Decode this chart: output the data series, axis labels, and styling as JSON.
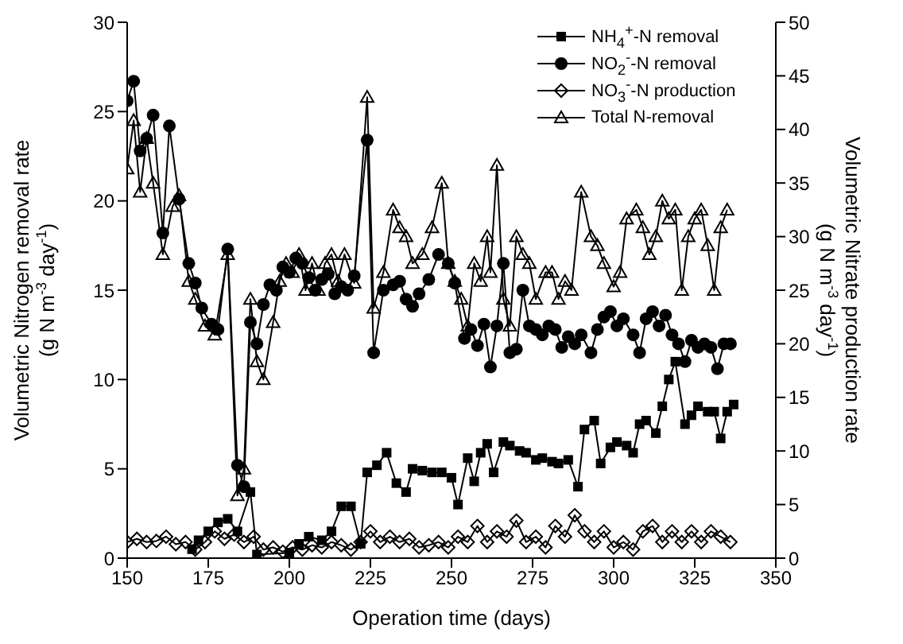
{
  "chart_data": {
    "type": "line",
    "xlabel": "Operation time (days)",
    "ylabel": "Volumetric Nitrogen removal rate\n(g N m$^{-3}$ day$^{-1}$)",
    "y2label": "Volumetric Nitrate production rate\n(g N m$^{-3}$ day$^{-1}$)",
    "xlim": [
      150,
      350
    ],
    "xticks": [
      150,
      175,
      200,
      225,
      250,
      275,
      300,
      325,
      350
    ],
    "ylim": [
      0,
      30
    ],
    "yticks": [
      0,
      5,
      10,
      15,
      20,
      25,
      30
    ],
    "y2lim": [
      0,
      50
    ],
    "y2ticks": [
      0,
      5,
      10,
      15,
      20,
      25,
      30,
      35,
      40,
      45,
      50
    ],
    "legend": "top right",
    "grid": false,
    "series": [
      {
        "name": "NH$_{4}$$^{+}$-N removal",
        "color": "#000000",
        "marker": "square",
        "x": [
          170,
          172,
          175,
          178,
          181,
          184,
          188,
          190,
          200,
          203,
          206,
          210,
          213,
          216,
          219,
          222,
          224,
          227,
          230,
          233,
          236,
          238,
          241,
          244,
          247,
          250,
          252,
          255,
          257,
          259,
          261,
          263,
          266,
          268,
          271,
          273,
          276,
          278,
          281,
          283,
          286,
          289,
          291,
          294,
          296,
          299,
          301,
          304,
          306,
          308,
          310,
          313,
          315,
          317,
          319,
          322,
          324,
          326,
          329,
          331,
          333,
          335,
          337
        ],
        "values": [
          0.5,
          1.0,
          1.5,
          2.0,
          2.2,
          1.5,
          3.7,
          0.2,
          0.3,
          0.8,
          1.2,
          1.0,
          1.5,
          2.9,
          2.9,
          0.8,
          4.8,
          5.2,
          5.9,
          4.2,
          3.7,
          5.0,
          4.9,
          4.8,
          4.8,
          4.5,
          3.0,
          5.6,
          4.3,
          5.9,
          6.4,
          4.8,
          6.5,
          6.3,
          6.0,
          5.9,
          5.5,
          5.6,
          5.4,
          5.3,
          5.5,
          4.0,
          7.2,
          7.7,
          5.3,
          6.2,
          6.5,
          6.3,
          5.9,
          7.5,
          7.7,
          7.0,
          8.5,
          10.0,
          11.0,
          7.5,
          8.0,
          8.5,
          8.2,
          8.2,
          6.7,
          8.2,
          8.6
        ]
      },
      {
        "name": "NO$_{2}$$^{-}$-N removal",
        "color": "#000000",
        "marker": "circle",
        "x": [
          150,
          152,
          154,
          156,
          158,
          161,
          163,
          166,
          169,
          171,
          173,
          176,
          178,
          181,
          184,
          186,
          188,
          190,
          192,
          194,
          196,
          198,
          200,
          202,
          204,
          206,
          208,
          210,
          212,
          214,
          216,
          218,
          220,
          224,
          226,
          229,
          232,
          234,
          236,
          238,
          240,
          243,
          246,
          249,
          251,
          254,
          256,
          258,
          260,
          262,
          264,
          266,
          268,
          270,
          272,
          274,
          276,
          278,
          280,
          282,
          284,
          286,
          288,
          290,
          293,
          295,
          297,
          299,
          301,
          303,
          306,
          308,
          310,
          312,
          314,
          316,
          318,
          320,
          322,
          324,
          326,
          328,
          330,
          332,
          334,
          336
        ],
        "values": [
          25.6,
          26.7,
          22.8,
          23.5,
          24.8,
          18.2,
          24.2,
          20.1,
          16.5,
          15.4,
          14.0,
          13.1,
          12.8,
          17.3,
          5.2,
          4.0,
          13.2,
          12.0,
          14.2,
          15.3,
          15.0,
          16.3,
          16.0,
          16.8,
          16.5,
          15.7,
          15.0,
          15.6,
          15.9,
          14.8,
          15.2,
          15.0,
          15.8,
          23.4,
          11.5,
          15.0,
          15.3,
          15.5,
          14.5,
          14.1,
          14.8,
          15.6,
          17.0,
          16.5,
          15.4,
          12.3,
          12.8,
          11.9,
          13.1,
          10.7,
          13.0,
          16.5,
          11.5,
          11.7,
          15.0,
          13.0,
          12.8,
          12.5,
          13.0,
          12.8,
          11.8,
          12.4,
          12.0,
          12.5,
          11.5,
          12.8,
          13.5,
          13.8,
          13.0,
          13.4,
          12.5,
          11.5,
          13.4,
          13.8,
          13.0,
          13.6,
          12.5,
          12.0,
          11.0,
          12.2,
          11.8,
          12.0,
          11.8,
          10.6,
          12.0,
          12.0
        ]
      },
      {
        "name": "NO$_{3}$$^{-}$-N production",
        "color": "#000000",
        "marker": "diamond",
        "axis": "y2",
        "x": [
          150,
          153,
          156,
          159,
          162,
          165,
          168,
          171,
          174,
          177,
          180,
          183,
          186,
          189,
          192,
          195,
          198,
          201,
          204,
          207,
          210,
          213,
          216,
          219,
          222,
          225,
          228,
          231,
          234,
          237,
          240,
          243,
          246,
          249,
          252,
          255,
          258,
          261,
          264,
          267,
          270,
          273,
          276,
          279,
          282,
          285,
          288,
          291,
          294,
          297,
          300,
          303,
          306,
          309,
          312,
          315,
          318,
          321,
          324,
          327,
          330,
          333,
          336
        ],
        "values": [
          1.5,
          1.8,
          1.5,
          1.6,
          2.0,
          1.3,
          1.5,
          0.8,
          1.5,
          2.5,
          1.8,
          2.2,
          1.5,
          2.0,
          0.8,
          1.0,
          0.6,
          1.0,
          0.8,
          1.2,
          1.0,
          1.5,
          1.2,
          0.8,
          1.5,
          2.5,
          1.5,
          2.0,
          1.5,
          1.8,
          1.0,
          1.2,
          1.5,
          1.0,
          2.0,
          1.5,
          3.0,
          1.5,
          2.5,
          2.0,
          3.5,
          1.5,
          2.0,
          1.0,
          3.0,
          2.0,
          4.0,
          2.5,
          1.5,
          2.5,
          1.0,
          1.5,
          0.8,
          2.5,
          3.0,
          1.5,
          2.5,
          1.5,
          2.5,
          1.5,
          2.5,
          2.0,
          1.5
        ]
      },
      {
        "name": "Total N-removal",
        "color": "#000000",
        "marker": "triangle",
        "x": [
          150,
          152,
          154,
          156,
          158,
          161,
          164,
          166,
          169,
          171,
          174,
          177,
          181,
          184,
          186,
          188,
          190,
          192,
          195,
          197,
          199,
          201,
          203,
          205,
          207,
          209,
          211,
          213,
          215,
          217,
          220,
          224,
          226,
          229,
          232,
          234,
          236,
          238,
          241,
          244,
          247,
          249,
          251,
          253,
          255,
          257,
          259,
          261,
          262,
          264,
          266,
          268,
          270,
          272,
          274,
          276,
          279,
          281,
          283,
          285,
          287,
          290,
          293,
          295,
          297,
          300,
          302,
          304,
          307,
          309,
          311,
          313,
          315,
          317,
          319,
          321,
          323,
          325,
          327,
          329,
          331,
          333,
          335
        ],
        "values": [
          21.8,
          24.5,
          20.5,
          23.5,
          21.0,
          17.0,
          19.7,
          20.3,
          15.5,
          14.5,
          13.0,
          12.5,
          17.0,
          3.5,
          5.0,
          14.5,
          11.0,
          10.0,
          13.2,
          15.5,
          16.5,
          16.0,
          17.0,
          15.0,
          16.5,
          15.0,
          16.5,
          17.0,
          15.5,
          17.0,
          15.4,
          25.8,
          14.0,
          16.0,
          19.5,
          18.5,
          18.0,
          16.5,
          17.0,
          18.5,
          21.0,
          16.5,
          15.5,
          14.5,
          13.0,
          16.5,
          15.5,
          18.0,
          16.0,
          22.0,
          14.5,
          13.0,
          18.0,
          17.0,
          16.5,
          14.5,
          16.0,
          16.0,
          14.5,
          15.5,
          15.0,
          20.5,
          18.0,
          17.5,
          16.5,
          15.2,
          16.0,
          19.0,
          19.5,
          18.5,
          17.0,
          18.0,
          20.0,
          19.0,
          19.5,
          15.0,
          18.0,
          19.0,
          19.5,
          17.5,
          15.0,
          18.5,
          19.5
        ]
      }
    ]
  }
}
